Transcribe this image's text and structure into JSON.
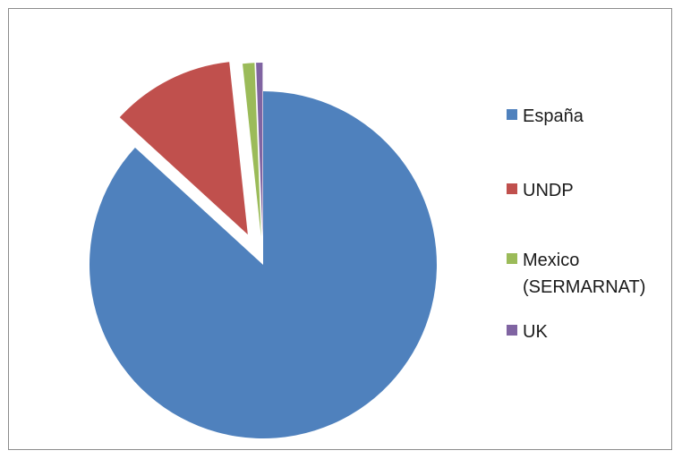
{
  "chart_data": {
    "type": "pie",
    "categories": [
      "España",
      "UNDP",
      "Mexico\n(SERMARNAT)",
      "UK"
    ],
    "values": [
      86.8,
      11.5,
      1.1,
      0.6
    ],
    "colors": [
      "#4f81bd",
      "#c0504d",
      "#9bbb59",
      "#8064a2"
    ],
    "exploded": [
      false,
      true,
      true,
      true
    ],
    "legend_position": "right"
  }
}
